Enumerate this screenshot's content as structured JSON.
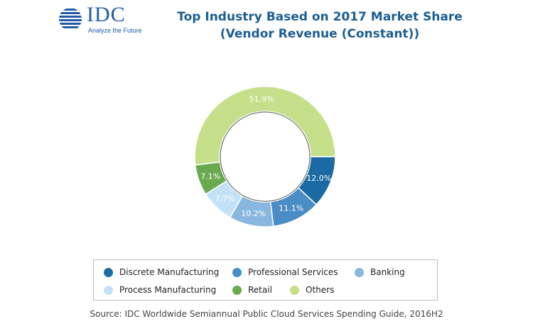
{
  "logo": {
    "text": "IDC",
    "tagline": "Analyze the Future",
    "color": "#1f5aa6"
  },
  "chart_data": {
    "type": "pie",
    "donut": true,
    "title": "Top Industry Based on 2017 Market Share (Vendor Revenue (Constant))",
    "source": "Source: IDC Worldwide Semiannual Public Cloud Services Spending Guide, 2016H2",
    "legend_position": "bottom",
    "slices": [
      {
        "name": "Discrete Manufacturing",
        "value": 12.0,
        "label": "12.0%",
        "color": "#1b6aa3"
      },
      {
        "name": "Professional Services",
        "value": 11.1,
        "label": "11.1%",
        "color": "#4a8cc4"
      },
      {
        "name": "Banking",
        "value": 10.2,
        "label": "10.2%",
        "color": "#88b7e0"
      },
      {
        "name": "Process Manufacturing",
        "value": 7.7,
        "label": "7.7%",
        "color": "#c3e2f8"
      },
      {
        "name": "Retail",
        "value": 7.1,
        "label": "7.1%",
        "color": "#6aaa4f"
      },
      {
        "name": "Others",
        "value": 51.9,
        "label": "51.9%",
        "color": "#c6df8a"
      }
    ]
  }
}
